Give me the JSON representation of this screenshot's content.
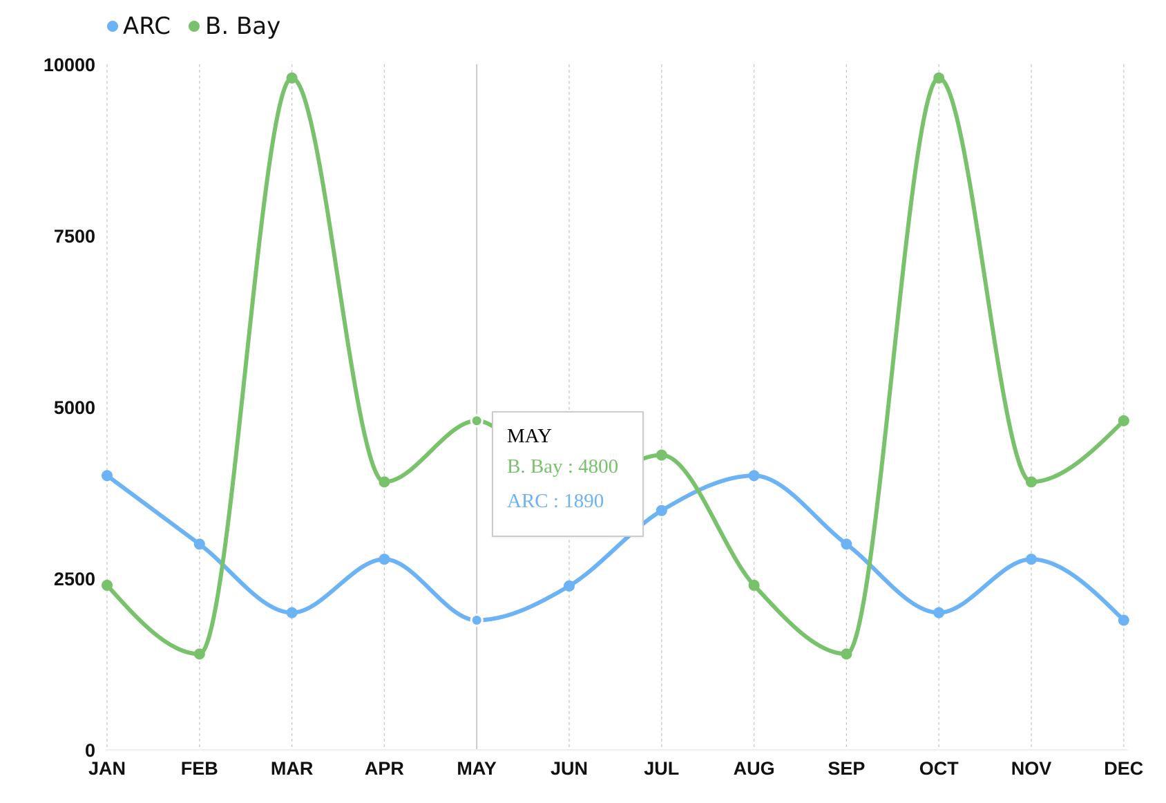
{
  "colors": {
    "arc": "#6cb3f5",
    "bbay": "#78c26b",
    "grid": "#c8c8c8",
    "axis": "#eeeeee",
    "hover_line": "#bdbdbd"
  },
  "tooltip": {
    "category": "MAY",
    "rows": [
      {
        "label": "B. Bay",
        "sep": " : ",
        "value": "4800"
      },
      {
        "label": "ARC",
        "sep": " : ",
        "value": "1890"
      }
    ]
  },
  "chart_data": {
    "type": "line",
    "categories": [
      "JAN",
      "FEB",
      "MAR",
      "APR",
      "MAY",
      "JUN",
      "JUL",
      "AUG",
      "SEP",
      "OCT",
      "NOV",
      "DEC"
    ],
    "series": [
      {
        "name": "ARC",
        "values": [
          4000,
          3000,
          2000,
          2780,
          1890,
          2390,
          3490,
          4000,
          3000,
          2000,
          2780,
          1890
        ]
      },
      {
        "name": "B. Bay",
        "values": [
          2400,
          1398,
          9800,
          3908,
          4800,
          3800,
          4300,
          2400,
          1398,
          9800,
          3908,
          4800
        ]
      }
    ],
    "y_ticks": [
      "0",
      "2500",
      "5000",
      "7500",
      "10000"
    ],
    "ylim": [
      0,
      10000
    ],
    "curve": "smooth",
    "grid": "vertical-dashed",
    "legend": "top-left",
    "active_category": "MAY"
  }
}
